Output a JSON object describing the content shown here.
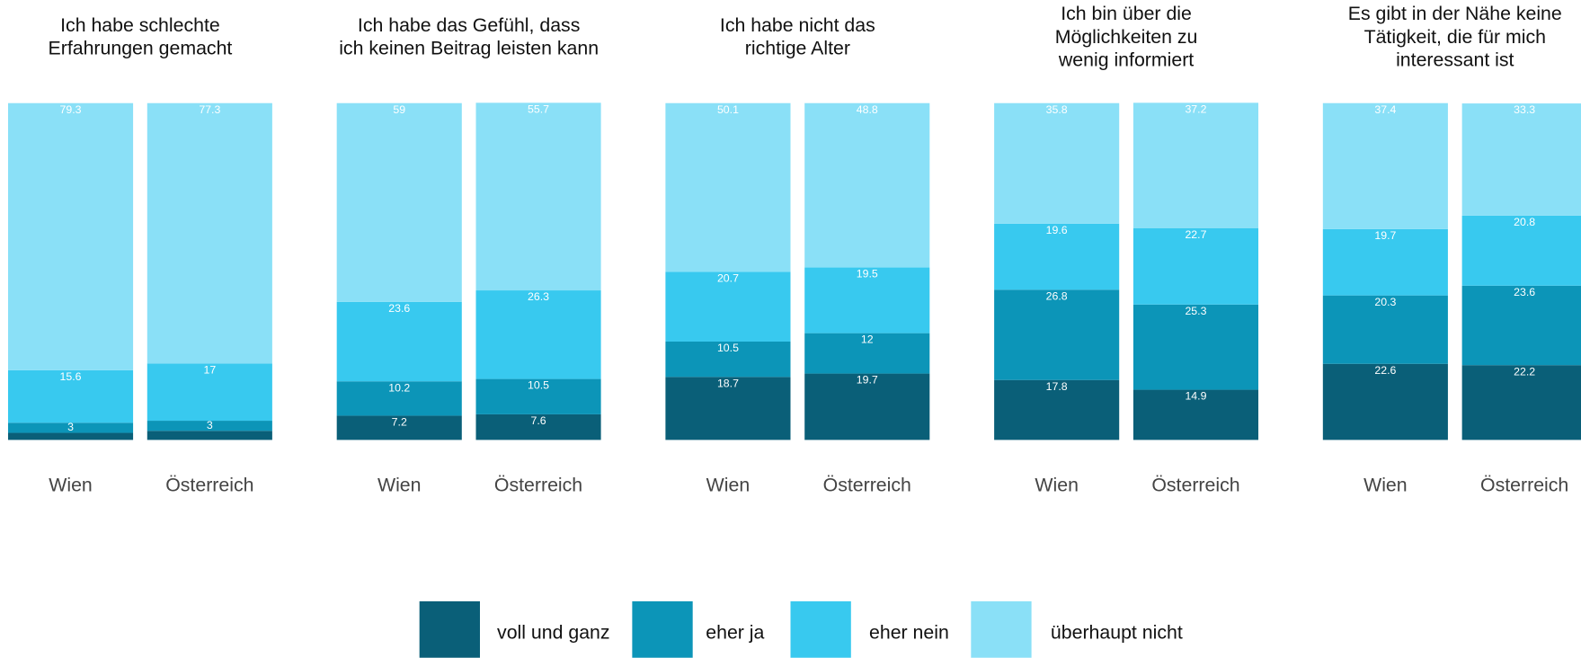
{
  "chart_data": [
    {
      "type": "bar",
      "stacked": true,
      "title": "Ich habe schlechte\nErfahrungen gemacht",
      "categories": [
        "Wien",
        "Österreich"
      ],
      "ylim": [
        0,
        100
      ],
      "series": [
        {
          "name": "voll und ganz",
          "color": "#0a5f78",
          "values": [
            2.1,
            2.7
          ],
          "value_labels": [
            null,
            null
          ]
        },
        {
          "name": "eher ja",
          "color": "#0c95b8",
          "values": [
            3,
            3
          ]
        },
        {
          "name": "eher nein",
          "color": "#38c9ef",
          "values": [
            15.6,
            17
          ]
        },
        {
          "name": "überhaupt nicht",
          "color": "#8ae0f7",
          "values": [
            79.3,
            77.3
          ]
        }
      ]
    },
    {
      "type": "bar",
      "stacked": true,
      "title": "Ich habe das Gefühl, dass\nich keinen Beitrag leisten kann",
      "categories": [
        "Wien",
        "Österreich"
      ],
      "ylim": [
        0,
        100
      ],
      "series": [
        {
          "name": "voll und ganz",
          "color": "#0a5f78",
          "values": [
            7.2,
            7.6
          ]
        },
        {
          "name": "eher ja",
          "color": "#0c95b8",
          "values": [
            10.2,
            10.5
          ]
        },
        {
          "name": "eher nein",
          "color": "#38c9ef",
          "values": [
            23.6,
            26.3
          ]
        },
        {
          "name": "überhaupt nicht",
          "color": "#8ae0f7",
          "values": [
            59,
            55.7
          ]
        }
      ]
    },
    {
      "type": "bar",
      "stacked": true,
      "title": "Ich habe nicht das\nrichtige Alter",
      "categories": [
        "Wien",
        "Österreich"
      ],
      "ylim": [
        0,
        100
      ],
      "series": [
        {
          "name": "voll und ganz",
          "color": "#0a5f78",
          "values": [
            18.7,
            19.7
          ]
        },
        {
          "name": "eher ja",
          "color": "#0c95b8",
          "values": [
            10.5,
            12
          ]
        },
        {
          "name": "eher nein",
          "color": "#38c9ef",
          "values": [
            20.7,
            19.5
          ]
        },
        {
          "name": "überhaupt nicht",
          "color": "#8ae0f7",
          "values": [
            50.1,
            48.8
          ]
        }
      ]
    },
    {
      "type": "bar",
      "stacked": true,
      "title": "Ich bin über die\nMöglichkeiten zu\nwenig informiert",
      "categories": [
        "Wien",
        "Österreich"
      ],
      "ylim": [
        0,
        100
      ],
      "series": [
        {
          "name": "voll und ganz",
          "color": "#0a5f78",
          "values": [
            17.8,
            14.9
          ]
        },
        {
          "name": "eher ja",
          "color": "#0c95b8",
          "values": [
            26.8,
            25.3
          ]
        },
        {
          "name": "eher nein",
          "color": "#38c9ef",
          "values": [
            19.6,
            22.7
          ]
        },
        {
          "name": "überhaupt nicht",
          "color": "#8ae0f7",
          "values": [
            35.8,
            37.2
          ]
        }
      ]
    },
    {
      "type": "bar",
      "stacked": true,
      "title": "Es gibt in der Nähe keine\nTätigkeit, die für mich\ninteressant ist",
      "categories": [
        "Wien",
        "Österreich"
      ],
      "ylim": [
        0,
        100
      ],
      "series": [
        {
          "name": "voll und ganz",
          "color": "#0a5f78",
          "values": [
            22.6,
            22.2
          ]
        },
        {
          "name": "eher ja",
          "color": "#0c95b8",
          "values": [
            20.3,
            23.6
          ]
        },
        {
          "name": "eher nein",
          "color": "#38c9ef",
          "values": [
            19.7,
            20.8
          ]
        },
        {
          "name": "überhaupt nicht",
          "color": "#8ae0f7",
          "values": [
            37.4,
            33.3
          ]
        }
      ]
    }
  ]
}
